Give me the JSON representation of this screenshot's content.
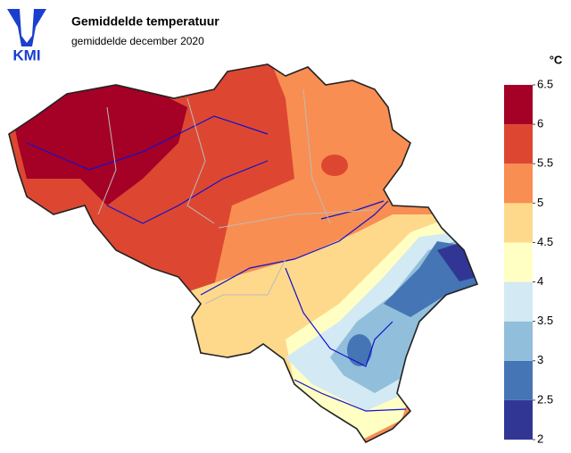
{
  "header": {
    "title": "Gemiddelde temperatuur",
    "subtitle": "gemiddelde december 2020",
    "logo": "KMI"
  },
  "legend": {
    "unit": "°C",
    "range": [
      2,
      6.5
    ],
    "ticks": [
      2,
      2.5,
      3,
      3.5,
      4,
      4.5,
      5,
      5.5,
      6,
      6.5
    ],
    "colors": [
      "#313695",
      "#4575b4",
      "#91bfdb",
      "#d3e9f3",
      "#ffffc4",
      "#fed98b",
      "#f98e52",
      "#dd4731",
      "#a50026"
    ]
  }
}
